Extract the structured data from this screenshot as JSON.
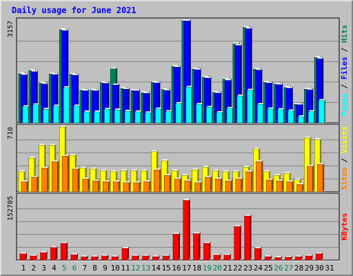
{
  "title": "Daily usage for June 2021",
  "colors": {
    "hits": "#00805c",
    "files": "#0000ff",
    "pages": "#00ffff",
    "visits": "#ffff00",
    "sites": "#ff8000",
    "kbytes": "#ff0000",
    "weekend": "#00805c",
    "weekday": "#000000"
  },
  "chart_data": [
    {
      "type": "bar",
      "panel": "hits_files_pages",
      "ymax_label": "3157",
      "ylim": [
        0,
        3157
      ],
      "categories": [
        "1",
        "2",
        "3",
        "4",
        "5",
        "6",
        "7",
        "8",
        "9",
        "10",
        "11",
        "12",
        "13",
        "14",
        "15",
        "16",
        "17",
        "18",
        "19",
        "20",
        "21",
        "22",
        "23",
        "24",
        "25",
        "26",
        "27",
        "28",
        "29",
        "30",
        "31"
      ],
      "axis_label_parts": [
        {
          "text": "Pages",
          "color": "pages"
        },
        {
          "text": " / ",
          "color": "sep"
        },
        {
          "text": "Files",
          "color": "files"
        },
        {
          "text": " / ",
          "color": "sep"
        },
        {
          "text": "Hits",
          "color": "hits"
        }
      ],
      "series": [
        {
          "name": "Hits",
          "values": [
            1520,
            1620,
            1230,
            1510,
            2880,
            1500,
            1010,
            1010,
            1240,
            1670,
            1060,
            1000,
            930,
            1250,
            1030,
            1750,
            3180,
            1660,
            1410,
            940,
            1350,
            2440,
            2950,
            1660,
            1250,
            1200,
            1090,
            570,
            1040,
            2020,
            0
          ]
        },
        {
          "name": "Files",
          "values": [
            1480,
            1580,
            1200,
            1490,
            2850,
            1470,
            990,
            990,
            1220,
            1170,
            1040,
            990,
            910,
            1230,
            1000,
            1720,
            3150,
            1640,
            1380,
            920,
            1310,
            2390,
            2910,
            1630,
            1230,
            1180,
            1070,
            560,
            1020,
            1980,
            0
          ]
        },
        {
          "name": "Pages",
          "values": [
            500,
            560,
            420,
            520,
            1090,
            520,
            340,
            340,
            420,
            400,
            360,
            340,
            310,
            430,
            350,
            600,
            1100,
            570,
            480,
            320,
            450,
            830,
            1010,
            570,
            430,
            410,
            370,
            190,
            350,
            690,
            0
          ]
        }
      ]
    },
    {
      "type": "bar",
      "panel": "visits_sites",
      "ymax_label": "710",
      "ylim": [
        0,
        710
      ],
      "categories": [
        "1",
        "2",
        "3",
        "4",
        "5",
        "6",
        "7",
        "8",
        "9",
        "10",
        "11",
        "12",
        "13",
        "14",
        "15",
        "16",
        "17",
        "18",
        "19",
        "20",
        "21",
        "22",
        "23",
        "24",
        "25",
        "26",
        "27",
        "28",
        "29",
        "30",
        "31"
      ],
      "axis_label_parts": [
        {
          "text": "Sites",
          "color": "sites"
        },
        {
          "text": " / ",
          "color": "sep"
        },
        {
          "text": "Visits",
          "color": "visits"
        }
      ],
      "series": [
        {
          "name": "Visits",
          "values": [
            220,
            370,
            510,
            510,
            710,
            400,
            260,
            250,
            230,
            220,
            230,
            230,
            230,
            440,
            340,
            230,
            180,
            240,
            270,
            230,
            220,
            220,
            270,
            470,
            220,
            180,
            200,
            130,
            590,
            570,
            0
          ]
        },
        {
          "name": "Sites",
          "values": [
            110,
            160,
            260,
            330,
            390,
            250,
            140,
            120,
            110,
            110,
            100,
            100,
            110,
            240,
            180,
            140,
            120,
            100,
            160,
            140,
            120,
            140,
            220,
            330,
            130,
            120,
            110,
            80,
            280,
            300,
            0
          ]
        }
      ]
    },
    {
      "type": "bar",
      "panel": "kbytes",
      "ymax_label": "152705",
      "ylim": [
        0,
        152705
      ],
      "categories": [
        "1",
        "2",
        "3",
        "4",
        "5",
        "6",
        "7",
        "8",
        "9",
        "10",
        "11",
        "12",
        "13",
        "14",
        "15",
        "16",
        "17",
        "18",
        "19",
        "20",
        "21",
        "22",
        "23",
        "24",
        "25",
        "26",
        "27",
        "28",
        "29",
        "30",
        "31"
      ],
      "axis_label_parts": [
        {
          "text": "KBytes",
          "color": "kbytes"
        }
      ],
      "series": [
        {
          "name": "KBytes",
          "values": [
            15000,
            10000,
            18000,
            30000,
            40000,
            13000,
            8000,
            8000,
            10000,
            8000,
            28000,
            10000,
            10000,
            8000,
            10000,
            62000,
            142000,
            63000,
            40000,
            12000,
            12000,
            80000,
            105000,
            28000,
            8000,
            6000,
            7000,
            8000,
            10000,
            15000,
            0
          ]
        }
      ]
    }
  ],
  "x_days": [
    {
      "label": "1",
      "weekend": false
    },
    {
      "label": "2",
      "weekend": false
    },
    {
      "label": "3",
      "weekend": false
    },
    {
      "label": "4",
      "weekend": false
    },
    {
      "label": "5",
      "weekend": true
    },
    {
      "label": "6",
      "weekend": true
    },
    {
      "label": "7",
      "weekend": false
    },
    {
      "label": "8",
      "weekend": false
    },
    {
      "label": "9",
      "weekend": false
    },
    {
      "label": "10",
      "weekend": false
    },
    {
      "label": "11",
      "weekend": false
    },
    {
      "label": "12",
      "weekend": true
    },
    {
      "label": "13",
      "weekend": true
    },
    {
      "label": "14",
      "weekend": false
    },
    {
      "label": "15",
      "weekend": false
    },
    {
      "label": "16",
      "weekend": false
    },
    {
      "label": "17",
      "weekend": false
    },
    {
      "label": "18",
      "weekend": false
    },
    {
      "label": "19",
      "weekend": true
    },
    {
      "label": "20",
      "weekend": true
    },
    {
      "label": "21",
      "weekend": false
    },
    {
      "label": "22",
      "weekend": false
    },
    {
      "label": "23",
      "weekend": false
    },
    {
      "label": "24",
      "weekend": false
    },
    {
      "label": "25",
      "weekend": false
    },
    {
      "label": "26",
      "weekend": true
    },
    {
      "label": "27",
      "weekend": true
    },
    {
      "label": "28",
      "weekend": false
    },
    {
      "label": "29",
      "weekend": false
    },
    {
      "label": "30",
      "weekend": false
    },
    {
      "label": "31",
      "weekend": false
    }
  ]
}
